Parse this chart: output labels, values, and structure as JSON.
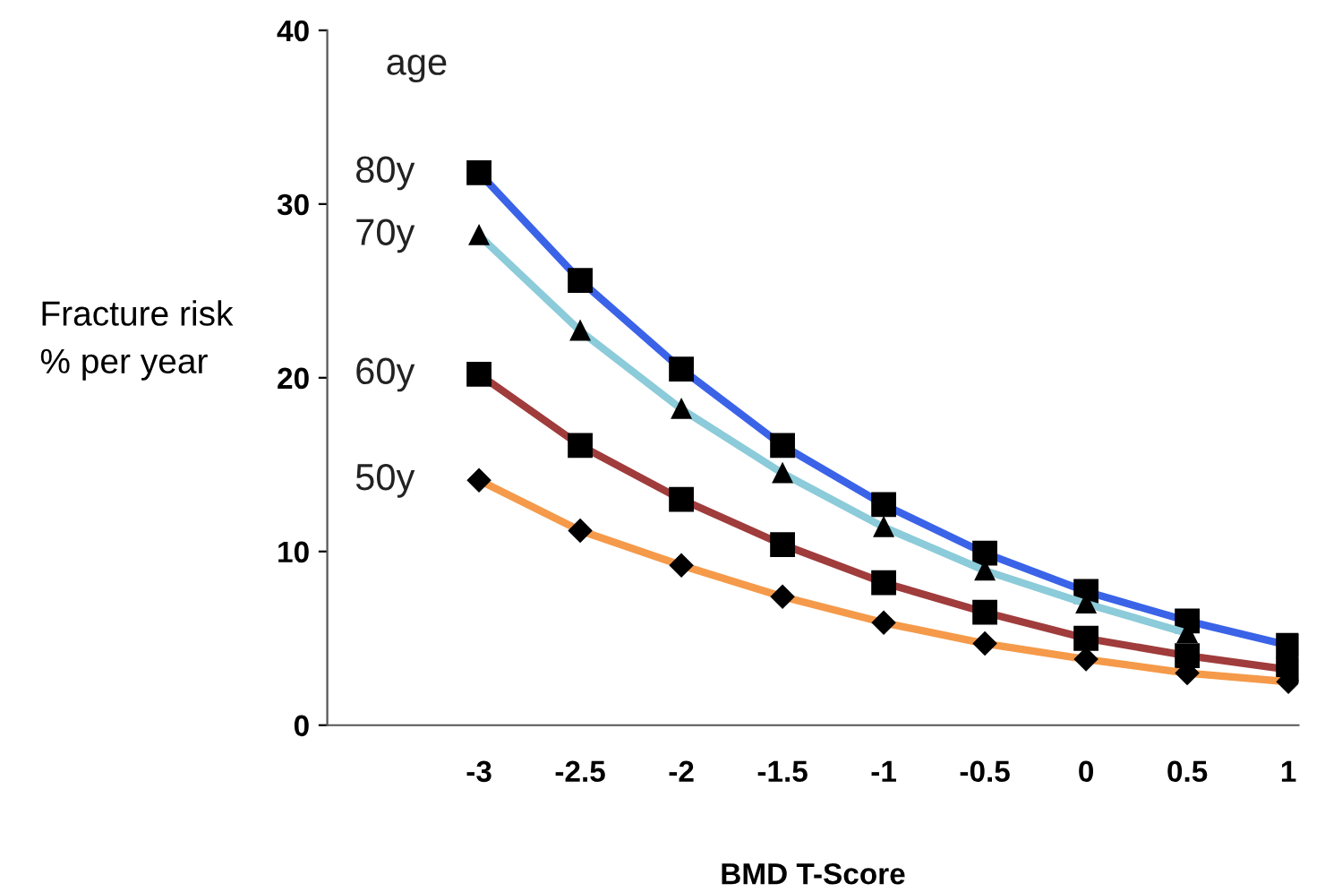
{
  "chart_data": {
    "type": "line",
    "xlabel": "BMD T-Score",
    "ylabel": "Fracture risk\n% per year",
    "legend_title": "age",
    "x": [
      -3,
      -2.5,
      -2,
      -1.5,
      -1,
      -0.5,
      0,
      0.5,
      1
    ],
    "series": [
      {
        "name": "80y",
        "color": "#3a63e8",
        "marker": "square",
        "values": [
          31.8,
          25.6,
          20.5,
          16.1,
          12.7,
          9.9,
          7.7,
          6.0,
          4.6
        ]
      },
      {
        "name": "70y",
        "color": "#8ccbd9",
        "marker": "triangle",
        "values": [
          28.2,
          22.7,
          18.2,
          14.5,
          11.4,
          8.9,
          7.0,
          5.3,
          null
        ]
      },
      {
        "name": "60y",
        "color": "#a03c3c",
        "marker": "square",
        "values": [
          20.2,
          16.1,
          13.0,
          10.4,
          8.2,
          6.5,
          5.0,
          4.0,
          3.2
        ]
      },
      {
        "name": "50y",
        "color": "#f59a4a",
        "marker": "diamond",
        "values": [
          14.1,
          11.2,
          9.2,
          7.4,
          5.9,
          4.7,
          3.8,
          3.0,
          2.5
        ]
      }
    ],
    "xlim": [
      -3.75,
      1.05
    ],
    "xticks": [
      -3,
      -2.5,
      -2,
      -1.5,
      -1,
      -0.5,
      0,
      0.5,
      1
    ],
    "ylim": [
      0,
      40
    ],
    "yticks": [
      0,
      10,
      20,
      30,
      40
    ],
    "grid": false,
    "legend": false
  }
}
